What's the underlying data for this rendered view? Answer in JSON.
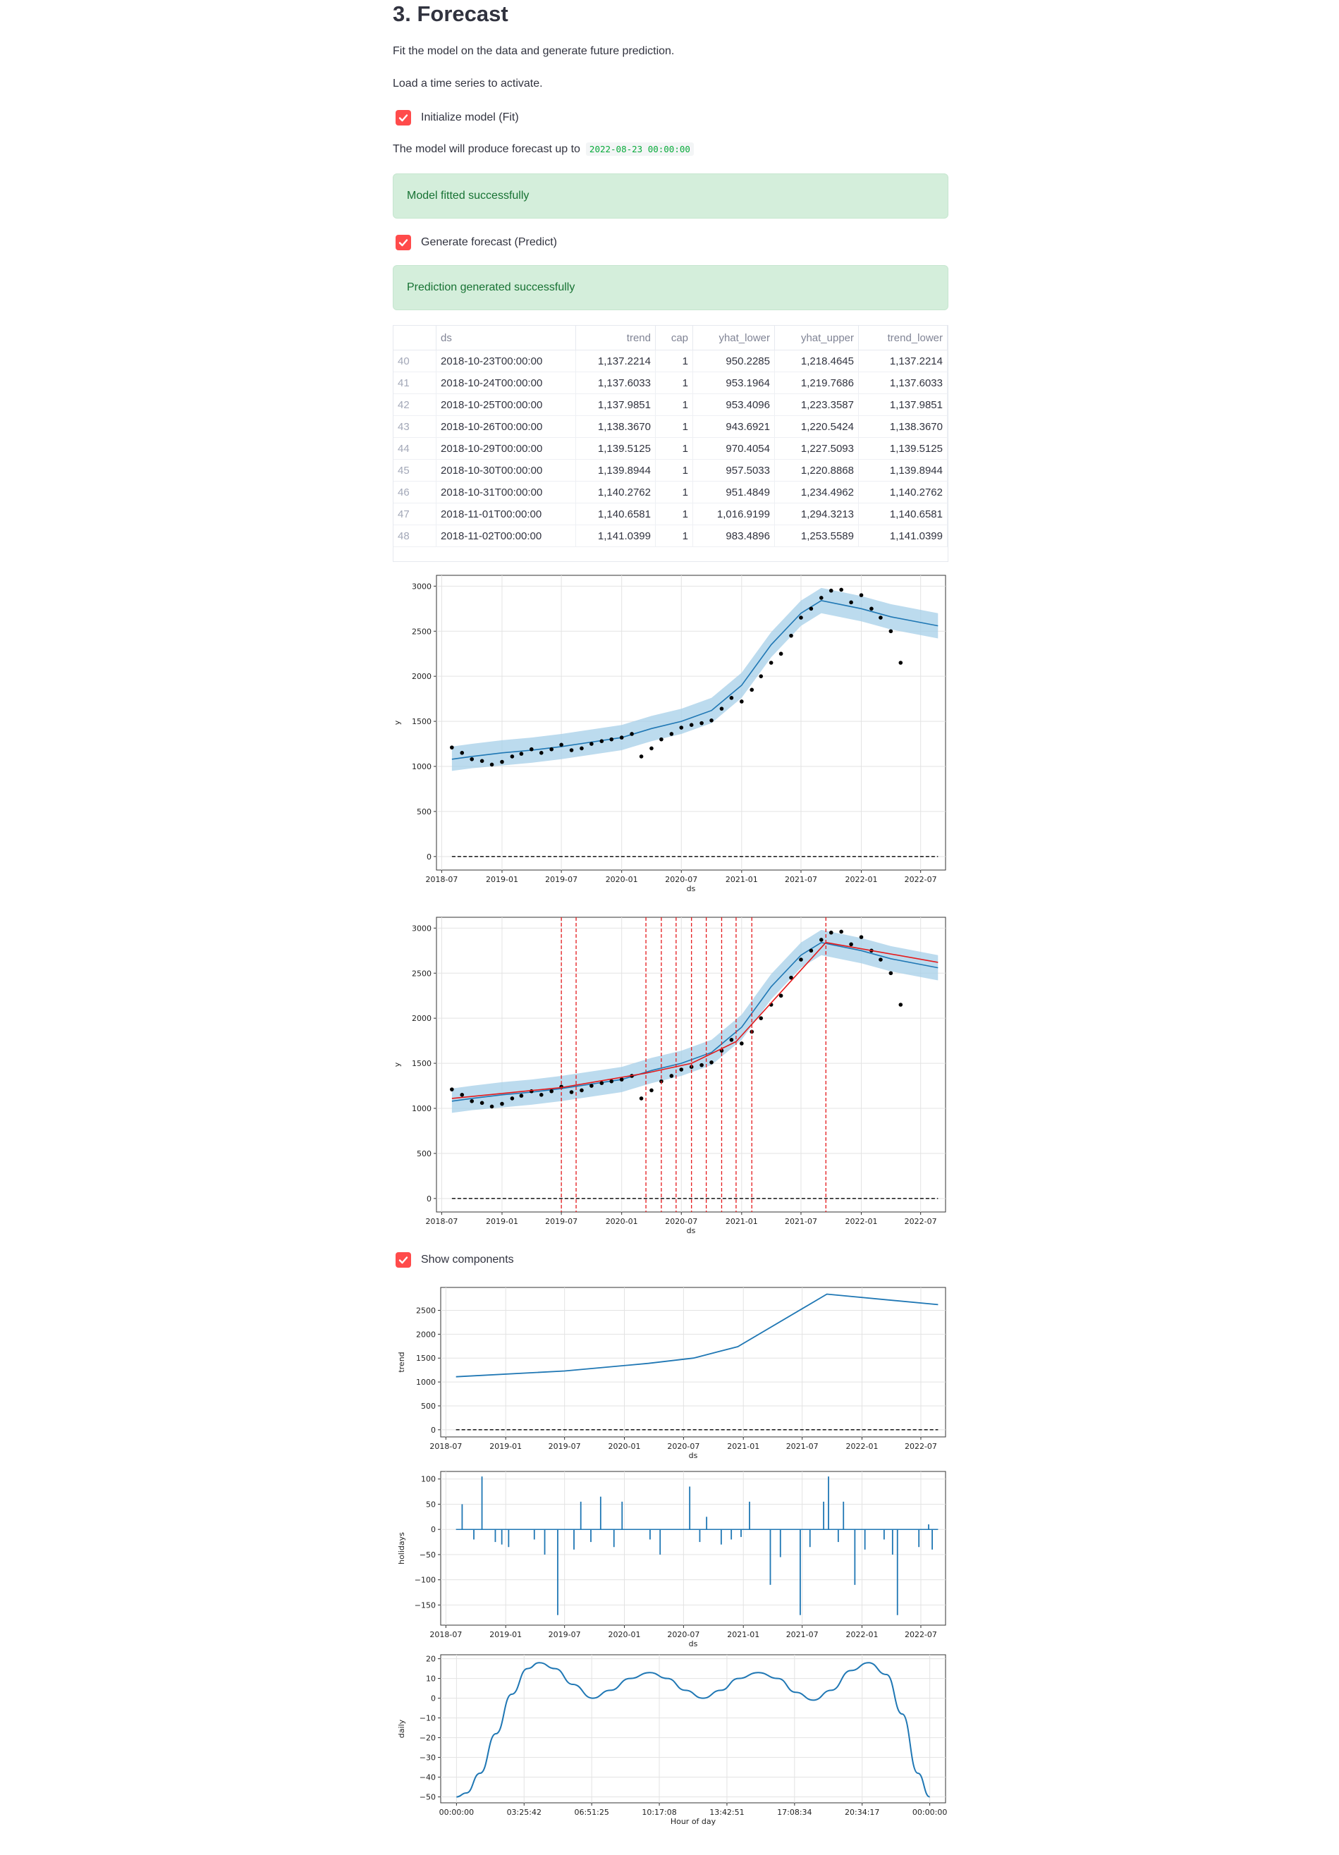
{
  "section": {
    "title": "3. Forecast",
    "description": "Fit the model on the data and generate future prediction.",
    "hint": "Load a time series to activate."
  },
  "fit": {
    "checkbox_label": "Initialize model (Fit)",
    "checked": true,
    "forecast_text": "The model will produce forecast up to",
    "forecast_date": "2022-08-23 00:00:00",
    "success": "Model fitted successfully"
  },
  "predict": {
    "checkbox_label": "Generate forecast (Predict)",
    "checked": true,
    "success": "Prediction generated successfully"
  },
  "components": {
    "checkbox_label": "Show components",
    "checked": true
  },
  "colors": {
    "accent": "#ff4b4b",
    "success_bg": "#d4eedb",
    "success_text": "#177233",
    "forecast_line": "#1f77b4",
    "interval": "#a6cfe8",
    "changepoint": "#e41a1c"
  },
  "table": {
    "columns": [
      "",
      "ds",
      "trend",
      "cap",
      "yhat_lower",
      "yhat_upper",
      "trend_lower"
    ],
    "rows": [
      [
        "40",
        "2018-10-23T00:00:00",
        "1,137.2214",
        "1",
        "950.2285",
        "1,218.4645",
        "1,137.2214"
      ],
      [
        "41",
        "2018-10-24T00:00:00",
        "1,137.6033",
        "1",
        "953.1964",
        "1,219.7686",
        "1,137.6033"
      ],
      [
        "42",
        "2018-10-25T00:00:00",
        "1,137.9851",
        "1",
        "953.4096",
        "1,223.3587",
        "1,137.9851"
      ],
      [
        "43",
        "2018-10-26T00:00:00",
        "1,138.3670",
        "1",
        "943.6921",
        "1,220.5424",
        "1,138.3670"
      ],
      [
        "44",
        "2018-10-29T00:00:00",
        "1,139.5125",
        "1",
        "970.4054",
        "1,227.5093",
        "1,139.5125"
      ],
      [
        "45",
        "2018-10-30T00:00:00",
        "1,139.8944",
        "1",
        "957.5033",
        "1,220.8868",
        "1,139.8944"
      ],
      [
        "46",
        "2018-10-31T00:00:00",
        "1,140.2762",
        "1",
        "951.4849",
        "1,234.4962",
        "1,140.2762"
      ],
      [
        "47",
        "2018-11-01T00:00:00",
        "1,140.6581",
        "1",
        "1,016.9199",
        "1,294.3213",
        "1,140.6581"
      ],
      [
        "48",
        "2018-11-02T00:00:00",
        "1,141.0399",
        "1",
        "983.4896",
        "1,253.5589",
        "1,141.0399"
      ]
    ]
  },
  "chart_data": [
    {
      "type": "line",
      "id": "forecast",
      "xlabel": "ds",
      "ylabel": "y",
      "x_ticks": [
        "2018-07",
        "2019-01",
        "2019-07",
        "2020-01",
        "2020-07",
        "2021-01",
        "2021-07",
        "2022-01",
        "2022-07"
      ],
      "y_ticks": [
        0,
        500,
        1000,
        1500,
        2000,
        2500,
        3000
      ],
      "ylim": [
        -150,
        3120
      ],
      "xlim": [
        "2018-06-15",
        "2022-09-15"
      ],
      "grid": true,
      "series": [
        {
          "role": "forecast",
          "x": [
            "2018-08-01",
            "2018-10-01",
            "2019-01-01",
            "2019-04-01",
            "2019-07-01",
            "2019-10-01",
            "2020-01-01",
            "2020-04-01",
            "2020-07-01",
            "2020-10-01",
            "2021-01-01",
            "2021-04-01",
            "2021-07-01",
            "2021-09-01",
            "2022-01-01",
            "2022-04-01",
            "2022-08-23"
          ],
          "values": [
            1080,
            1110,
            1150,
            1180,
            1220,
            1270,
            1320,
            1420,
            1500,
            1620,
            1900,
            2350,
            2700,
            2840,
            2750,
            2660,
            2560
          ]
        },
        {
          "role": "yhat_lower",
          "x": [
            "2018-08-01",
            "2018-10-01",
            "2019-01-01",
            "2019-04-01",
            "2019-07-01",
            "2019-10-01",
            "2020-01-01",
            "2020-04-01",
            "2020-07-01",
            "2020-10-01",
            "2021-01-01",
            "2021-04-01",
            "2021-07-01",
            "2021-09-01",
            "2022-01-01",
            "2022-04-01",
            "2022-08-23"
          ],
          "values": [
            950,
            980,
            1010,
            1040,
            1080,
            1130,
            1180,
            1280,
            1360,
            1480,
            1760,
            2210,
            2560,
            2700,
            2610,
            2520,
            2420
          ]
        },
        {
          "role": "yhat_upper",
          "x": [
            "2018-08-01",
            "2018-10-01",
            "2019-01-01",
            "2019-04-01",
            "2019-07-01",
            "2019-10-01",
            "2020-01-01",
            "2020-04-01",
            "2020-07-01",
            "2020-10-01",
            "2021-01-01",
            "2021-04-01",
            "2021-07-01",
            "2021-09-01",
            "2022-01-01",
            "2022-04-01",
            "2022-08-23"
          ],
          "values": [
            1220,
            1250,
            1290,
            1320,
            1360,
            1410,
            1460,
            1560,
            1640,
            1760,
            2040,
            2490,
            2840,
            2980,
            2890,
            2800,
            2700
          ]
        },
        {
          "role": "observed",
          "x": [
            "2018-08-01",
            "2018-09-01",
            "2018-10-01",
            "2018-11-01",
            "2018-12-01",
            "2019-01-01",
            "2019-02-01",
            "2019-03-01",
            "2019-04-01",
            "2019-05-01",
            "2019-06-01",
            "2019-07-01",
            "2019-08-01",
            "2019-09-01",
            "2019-10-01",
            "2019-11-01",
            "2019-12-01",
            "2020-01-01",
            "2020-02-01",
            "2020-03-01",
            "2020-04-01",
            "2020-05-01",
            "2020-06-01",
            "2020-07-01",
            "2020-08-01",
            "2020-09-01",
            "2020-10-01",
            "2020-11-01",
            "2020-12-01",
            "2021-01-01",
            "2021-02-01",
            "2021-03-01",
            "2021-04-01",
            "2021-05-01",
            "2021-06-01",
            "2021-07-01",
            "2021-08-01",
            "2021-09-01",
            "2021-10-01",
            "2021-11-01",
            "2021-12-01",
            "2022-01-01",
            "2022-02-01",
            "2022-03-01",
            "2022-04-01",
            "2022-05-01"
          ],
          "values": [
            1210,
            1150,
            1080,
            1060,
            1020,
            1050,
            1110,
            1140,
            1190,
            1150,
            1190,
            1240,
            1180,
            1200,
            1250,
            1280,
            1300,
            1320,
            1360,
            1110,
            1200,
            1300,
            1360,
            1430,
            1460,
            1480,
            1510,
            1640,
            1760,
            1720,
            1850,
            2000,
            2150,
            2250,
            2450,
            2650,
            2750,
            2870,
            2950,
            2960,
            2820,
            2900,
            2750,
            2650,
            2500,
            2150
          ]
        },
        {
          "role": "cap",
          "x": [
            "2018-08-01",
            "2022-08-23"
          ],
          "values": [
            0,
            0
          ]
        }
      ]
    },
    {
      "type": "line",
      "id": "changepoints",
      "xlabel": "ds",
      "ylabel": "y",
      "x_ticks": [
        "2018-07",
        "2019-01",
        "2019-07",
        "2020-01",
        "2020-07",
        "2021-01",
        "2021-07",
        "2022-01",
        "2022-07"
      ],
      "y_ticks": [
        0,
        500,
        1000,
        1500,
        2000,
        2500,
        3000
      ],
      "ylim": [
        -150,
        3120
      ],
      "xlim": [
        "2018-06-15",
        "2022-09-15"
      ],
      "grid": true,
      "changepoints": [
        "2019-07-01",
        "2019-08-15",
        "2020-03-15",
        "2020-05-01",
        "2020-06-15",
        "2020-08-01",
        "2020-09-15",
        "2020-11-01",
        "2020-12-15",
        "2021-02-01",
        "2021-09-15"
      ],
      "trend_line": {
        "x": [
          "2018-08-01",
          "2019-07-01",
          "2020-03-15",
          "2020-08-01",
          "2020-12-15",
          "2021-09-15",
          "2022-08-23"
        ],
        "values": [
          1110,
          1230,
          1390,
          1500,
          1740,
          2840,
          2620
        ]
      }
    },
    {
      "type": "line",
      "id": "trend",
      "xlabel": "ds",
      "ylabel": "trend",
      "x_ticks": [
        "2018-07",
        "2019-01",
        "2019-07",
        "2020-01",
        "2020-07",
        "2021-01",
        "2021-07",
        "2022-01",
        "2022-07"
      ],
      "y_ticks": [
        0,
        500,
        1000,
        1500,
        2000,
        2500
      ],
      "ylim": [
        -150,
        2980
      ],
      "xlim": [
        "2018-06-15",
        "2022-09-15"
      ],
      "series": [
        {
          "name": "trend",
          "x": [
            "2018-08-01",
            "2019-07-01",
            "2020-03-15",
            "2020-08-01",
            "2020-12-15",
            "2021-09-15",
            "2022-08-23"
          ],
          "values": [
            1110,
            1230,
            1390,
            1500,
            1740,
            2840,
            2620
          ]
        },
        {
          "role": "cap",
          "x": [
            "2018-08-01",
            "2022-08-23"
          ],
          "values": [
            0,
            0
          ]
        }
      ]
    },
    {
      "type": "line",
      "id": "holidays",
      "xlabel": "ds",
      "ylabel": "holidays",
      "x_ticks": [
        "2018-07",
        "2019-01",
        "2019-07",
        "2020-01",
        "2020-07",
        "2021-01",
        "2021-07",
        "2022-01",
        "2022-07"
      ],
      "y_ticks": [
        100,
        50,
        0,
        -50,
        -100,
        -150
      ],
      "y_tick_labels": [
        "100",
        "50",
        "0",
        "−50",
        "−100",
        "−150"
      ],
      "ylim": [
        -190,
        115
      ],
      "xlim": [
        "2018-06-15",
        "2022-09-15"
      ],
      "spikes": {
        "x": [
          "2018-08-20",
          "2018-09-25",
          "2018-10-20",
          "2018-11-30",
          "2018-12-20",
          "2019-01-10",
          "2019-03-30",
          "2019-05-01",
          "2019-06-10",
          "2019-07-30",
          "2019-08-20",
          "2019-09-20",
          "2019-10-20",
          "2019-11-30",
          "2019-12-25",
          "2020-03-20",
          "2020-04-20",
          "2020-07-20",
          "2020-08-20",
          "2020-09-10",
          "2020-10-25",
          "2020-11-25",
          "2020-12-25",
          "2021-01-20",
          "2021-03-25",
          "2021-04-25",
          "2021-06-25",
          "2021-07-25",
          "2021-09-05",
          "2021-09-20",
          "2021-10-20",
          "2021-11-05",
          "2021-12-10",
          "2022-01-10",
          "2022-03-10",
          "2022-04-05",
          "2022-04-20",
          "2022-06-25",
          "2022-07-25",
          "2022-08-05"
        ],
        "values": [
          50,
          -20,
          105,
          -25,
          -30,
          -35,
          -20,
          -50,
          -170,
          -40,
          55,
          -25,
          65,
          -35,
          55,
          -20,
          -50,
          85,
          -25,
          25,
          -30,
          -20,
          -15,
          55,
          -110,
          -55,
          -170,
          -35,
          55,
          105,
          -25,
          55,
          -110,
          -40,
          -20,
          -50,
          -170,
          -35,
          10,
          -40
        ]
      }
    },
    {
      "type": "line",
      "id": "daily",
      "xlabel": "Hour of day",
      "ylabel": "daily",
      "x_ticks": [
        "00:00:00",
        "03:25:42",
        "06:51:25",
        "10:17:08",
        "13:42:51",
        "17:08:34",
        "20:34:17",
        "00:00:00"
      ],
      "y_ticks": [
        20,
        10,
        0,
        -10,
        -20,
        -30,
        -40,
        -50
      ],
      "y_tick_labels": [
        "20",
        "10",
        "0",
        "−10",
        "−20",
        "−30",
        "−40",
        "−50"
      ],
      "ylim": [
        -53,
        22
      ],
      "xlim": [
        -0.8,
        24.8
      ],
      "series": [
        {
          "name": "daily",
          "x": [
            0,
            0.5,
            1.2,
            2.0,
            2.8,
            3.6,
            4.2,
            5.0,
            5.9,
            6.9,
            7.8,
            8.8,
            9.8,
            10.7,
            11.6,
            12.5,
            13.4,
            14.3,
            15.3,
            16.3,
            17.2,
            18.1,
            19.0,
            20.0,
            20.9,
            21.8,
            22.6,
            23.4,
            24.0
          ],
          "values": [
            -50,
            -48,
            -38,
            -18,
            2,
            15,
            18,
            15,
            7,
            0,
            4,
            10,
            13,
            10,
            4,
            0,
            4,
            10,
            13,
            10,
            3,
            -1,
            4,
            14,
            18,
            12,
            -8,
            -38,
            -50
          ]
        }
      ]
    }
  ]
}
